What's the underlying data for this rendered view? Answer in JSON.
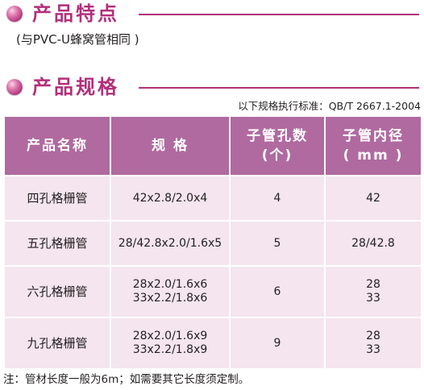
{
  "section_features": {
    "title": "产品特点",
    "note": "(与PVC-U蜂窝管相同 )"
  },
  "section_specs": {
    "title": "产品规格",
    "standard": "以下规格执行标准：QB/T 2667.1-2004"
  },
  "table": {
    "headers": {
      "name": "产品名称",
      "spec": "规 格",
      "holes_line1": "子管孔数",
      "holes_line2": "(个)",
      "diameter_line1": "子管内径",
      "diameter_line2": "( mm )"
    },
    "rows": [
      {
        "name": "四孔格栅管",
        "spec": [
          "42x2.8/2.0x4"
        ],
        "holes": "4",
        "diameter": [
          "42"
        ]
      },
      {
        "name": "五孔格栅管",
        "spec": [
          "28/42.8x2.0/1.6x5"
        ],
        "holes": "5",
        "diameter": [
          "28/42.8"
        ]
      },
      {
        "name": "六孔格栅管",
        "spec": [
          "28x2.0/1.6x6",
          "33x2.2/1.8x6"
        ],
        "holes": "6",
        "diameter": [
          "28",
          "33"
        ]
      },
      {
        "name": "九孔格栅管",
        "spec": [
          "28x2.0/1.6x9",
          "33x2.2/1.8x9"
        ],
        "holes": "9",
        "diameter": [
          "28",
          "33"
        ]
      }
    ]
  },
  "footnote": "注：管材长度一般为6m；如需要其它长度须定制。",
  "colors": {
    "accent": "#b2307a",
    "header_bg": "#b06aa0",
    "row_bg": "#f4e5ee"
  }
}
